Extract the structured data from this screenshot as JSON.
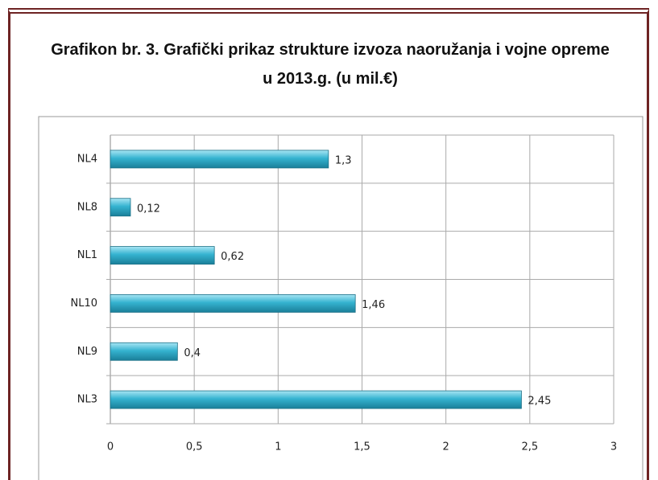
{
  "chart_data": {
    "type": "bar",
    "orientation": "horizontal",
    "title": "Grafikon br. 3. Grafički prikaz strukture izvoza naoružanja i vojne opreme u 2013.g. (u mil.€)",
    "categories": [
      "NL4",
      "NL8",
      "NL1",
      "NL10",
      "NL9",
      "NL3"
    ],
    "values": [
      1.3,
      0.12,
      0.62,
      1.46,
      0.4,
      2.45
    ],
    "value_labels": [
      "1,3",
      "0,12",
      "0,62",
      "1,46",
      "0,4",
      "2,45"
    ],
    "color": "#35b3d0",
    "xlim": [
      0,
      3
    ],
    "xticks": [
      0,
      {
        "value": 0.5,
        "label": "0,5"
      },
      1,
      {
        "value": 1.5,
        "label": "1,5"
      },
      2,
      {
        "value": 2.5,
        "label": "2,5"
      },
      3
    ],
    "grid": true
  }
}
